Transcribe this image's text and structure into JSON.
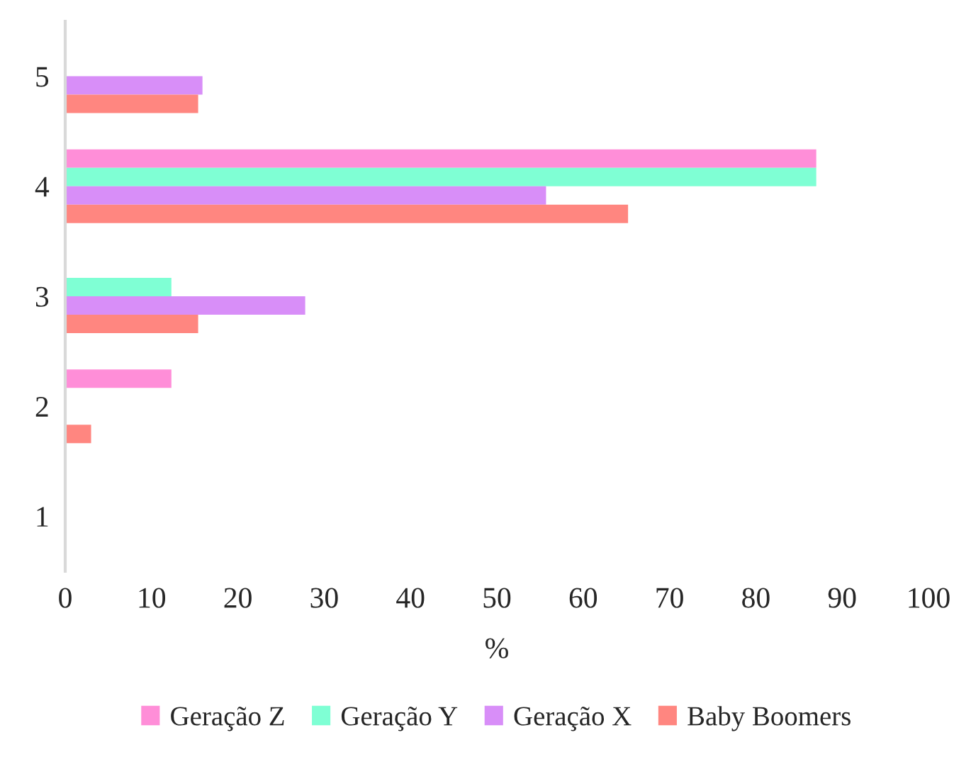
{
  "chart_data": {
    "type": "bar",
    "orientation": "horizontal",
    "xlabel": "%",
    "categories": [
      "5",
      "4",
      "3",
      "2",
      "1"
    ],
    "series": [
      {
        "name": "Geração Z",
        "color": "#ff8ed8",
        "values": [
          0,
          87,
          0,
          12.3,
          0
        ]
      },
      {
        "name": "Geração Y",
        "color": "#7fffd4",
        "values": [
          0,
          87,
          12.3,
          0,
          0
        ]
      },
      {
        "name": "Geração X",
        "color": "#d88ef8",
        "values": [
          15.9,
          55.7,
          27.8,
          0,
          0
        ]
      },
      {
        "name": "Baby Boomers",
        "color": "#ff8680",
        "values": [
          15.4,
          65.2,
          15.4,
          3,
          0
        ]
      }
    ],
    "xlim": [
      0,
      100
    ],
    "xticks": [
      0,
      10,
      20,
      30,
      40,
      50,
      60,
      70,
      80,
      90,
      100
    ],
    "grid": false,
    "legend": "bottom"
  }
}
